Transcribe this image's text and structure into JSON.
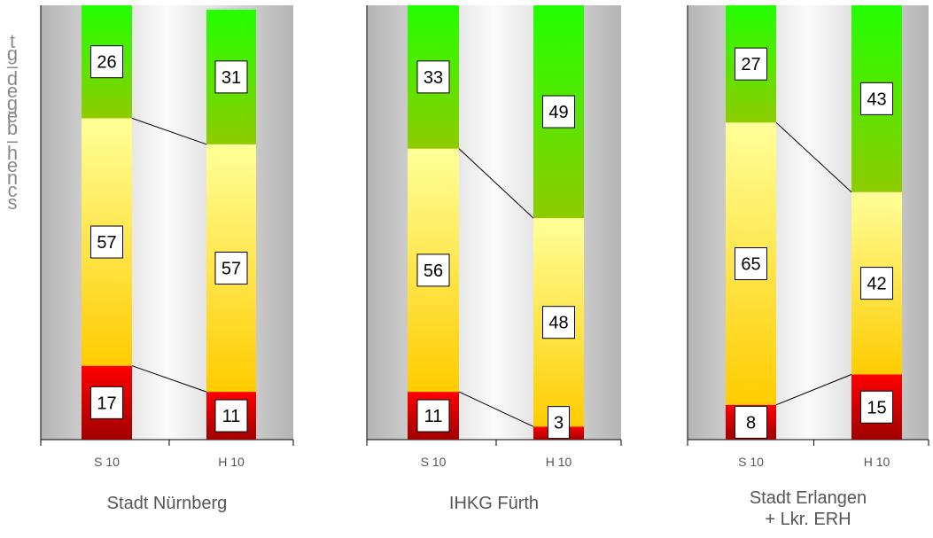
{
  "y_axis_label_chars": [
    "t",
    "g",
    "–",
    "d",
    "e",
    "g",
    "e",
    "b",
    "–",
    "h",
    "e",
    "n",
    "c",
    "s"
  ],
  "colors": {
    "good_top": "#22ff00",
    "good_bottom": "#8fcc00",
    "mid_top": "#ffff99",
    "mid_bottom": "#ffcc00",
    "bad_top": "#ff0000",
    "bad_bottom": "#a00000",
    "label_box": "#ffffff",
    "connector": "#000000"
  },
  "chart_data": [
    {
      "type": "bar",
      "stacked": true,
      "percent": true,
      "title": "Stadt Nürnberg",
      "categories": [
        "S 10",
        "H 10"
      ],
      "series": [
        {
          "values": [
            17,
            11
          ]
        },
        {
          "values": [
            57,
            57
          ]
        },
        {
          "values": [
            26,
            31
          ]
        }
      ]
    },
    {
      "type": "bar",
      "stacked": true,
      "percent": true,
      "title": "IHKG Fürth",
      "categories": [
        "S 10",
        "H 10"
      ],
      "series": [
        {
          "values": [
            11,
            3
          ]
        },
        {
          "values": [
            56,
            48
          ]
        },
        {
          "values": [
            33,
            49
          ]
        }
      ]
    },
    {
      "type": "bar",
      "stacked": true,
      "percent": true,
      "title": "Stadt Erlangen\n+ Lkr. ERH",
      "categories": [
        "S 10",
        "H 10"
      ],
      "series": [
        {
          "values": [
            8,
            15
          ]
        },
        {
          "values": [
            65,
            42
          ]
        },
        {
          "values": [
            27,
            43
          ]
        }
      ]
    }
  ]
}
